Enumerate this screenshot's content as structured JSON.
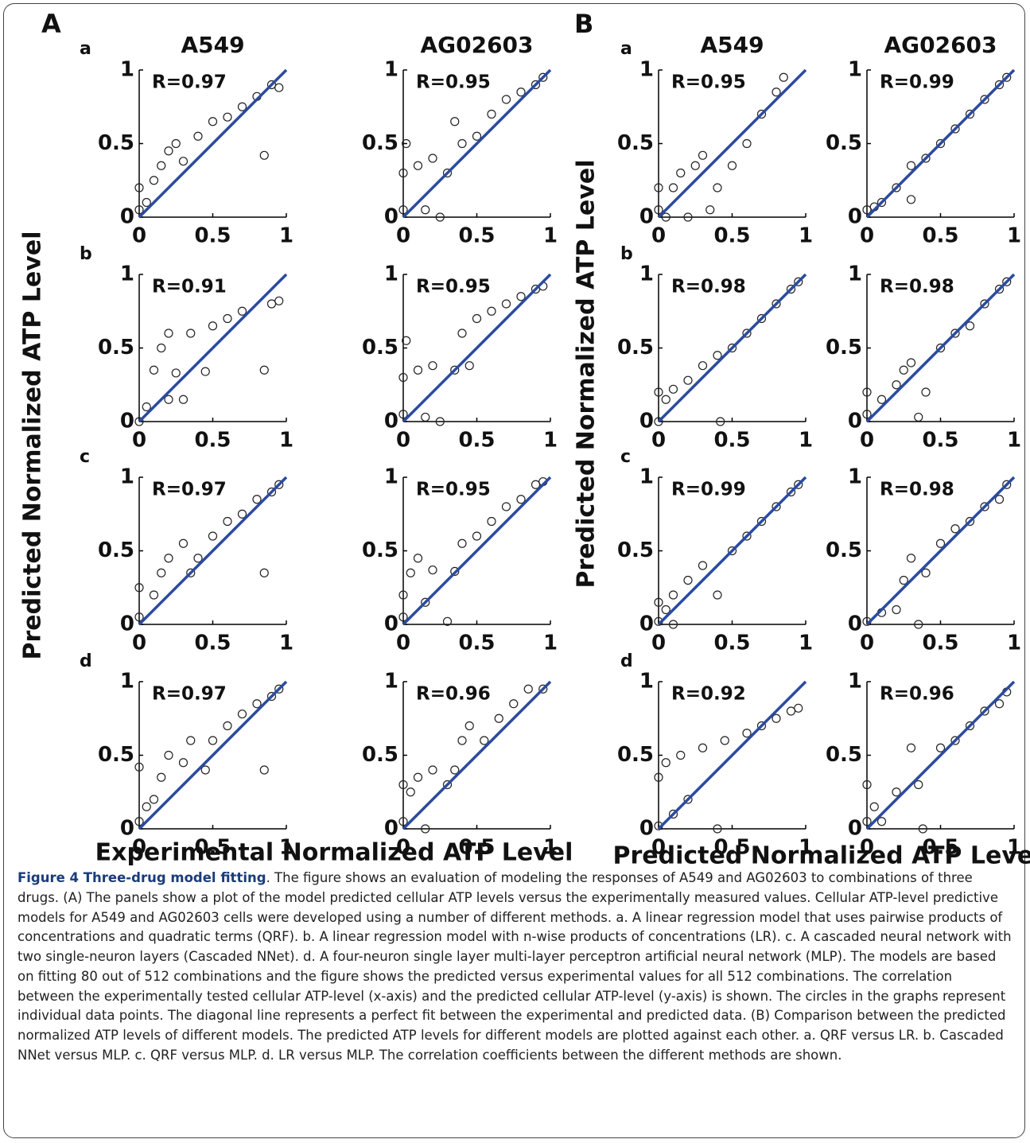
{
  "figure": {
    "group_labels": [
      "A",
      "B"
    ],
    "x_labels": [
      "Experimental Normalized ATP Level",
      "Predicted Normalized ATP Level"
    ],
    "y_labels": [
      "Predicted Normalized ATP Level",
      "Predicted Normalized ATP Level"
    ]
  },
  "caption": {
    "title": "Figure 4 Three-drug model fitting",
    "text": ". The figure shows an evaluation of modeling the responses of A549 and AG02603 to combinations of three drugs. (A) The panels show a plot of the model predicted cellular ATP levels versus the experimentally measured values. Cellular ATP-level predictive models for A549 and AG02603 cells were developed using a number of different methods. a. A linear regression model that uses pairwise products of concentrations and quadratic terms (QRF). b. A linear regression model with n-wise products of concentrations (LR). c. A cascaded neural network with two single-neuron layers (Cascaded NNet). d. A four-neuron single layer multi-layer perceptron artificial neural network (MLP). The models are based on fitting 80 out of 512 combinations and the figure shows the predicted versus experimental values for all 512 combinations. The correlation between the experimentally tested cellular ATP-level (x-axis) and the predicted cellular ATP-level (y-axis) is shown. The circles in the graphs represent individual data points. The diagonal line represents a perfect fit between the experimental and predicted data. (B) Comparison between the predicted normalized ATP levels of different models. The predicted ATP levels for different models are plotted against each other. a. QRF versus LR. b. Cascaded NNet versus MLP. c. QRF versus MLP. d. LR versus MLP. The correlation coefficients between the different methods are shown."
  },
  "chart_data": [
    {
      "type": "scatter",
      "title": "A549",
      "panel_label": "a",
      "annotation": "R=0.97",
      "x": [
        0,
        0,
        0.05,
        0.1,
        0.15,
        0.2,
        0.25,
        0.3,
        0.4,
        0.5,
        0.6,
        0.7,
        0.8,
        0.85,
        0.9,
        0.95
      ],
      "series": [
        {
          "color": "#222222",
          "values": [
            0.05,
            0.2,
            0.1,
            0.25,
            0.35,
            0.45,
            0.5,
            0.38,
            0.55,
            0.65,
            0.68,
            0.75,
            0.82,
            0.42,
            0.9,
            0.88
          ]
        }
      ],
      "xlim": [
        0,
        1
      ],
      "ylim": [
        0,
        1
      ],
      "xticks": [
        0,
        0.5,
        1
      ],
      "yticks": [
        0,
        0.5,
        1
      ],
      "diagonal_color": "#2b4ba0"
    },
    {
      "type": "scatter",
      "title": "AG02603",
      "annotation": "R=0.95",
      "x": [
        0,
        0,
        0.02,
        0.1,
        0.15,
        0.2,
        0.25,
        0.3,
        0.35,
        0.4,
        0.5,
        0.6,
        0.7,
        0.8,
        0.9,
        0.95
      ],
      "series": [
        {
          "color": "#222222",
          "values": [
            0.05,
            0.3,
            0.5,
            0.35,
            0.05,
            0.4,
            0,
            0.3,
            0.65,
            0.5,
            0.55,
            0.7,
            0.8,
            0.85,
            0.9,
            0.95
          ]
        }
      ],
      "xlim": [
        0,
        1
      ],
      "ylim": [
        0,
        1
      ],
      "xticks": [
        0,
        0.5,
        1
      ],
      "yticks": [
        0,
        0.5,
        1
      ],
      "diagonal_color": "#2b4ba0"
    },
    {
      "type": "scatter",
      "panel_label": "b",
      "annotation": "R=0.91",
      "x": [
        0,
        0.05,
        0.1,
        0.15,
        0.2,
        0.2,
        0.25,
        0.3,
        0.35,
        0.45,
        0.5,
        0.6,
        0.7,
        0.85,
        0.9,
        0.95
      ],
      "series": [
        {
          "color": "#222222",
          "values": [
            0,
            0.1,
            0.35,
            0.5,
            0.6,
            0.15,
            0.33,
            0.15,
            0.6,
            0.34,
            0.65,
            0.7,
            0.75,
            0.35,
            0.8,
            0.82
          ]
        }
      ],
      "xlim": [
        0,
        1
      ],
      "ylim": [
        0,
        1
      ],
      "xticks": [
        0,
        0.5,
        1
      ],
      "yticks": [
        0,
        0.5,
        1
      ],
      "diagonal_color": "#2b4ba0"
    },
    {
      "type": "scatter",
      "annotation": "R=0.95",
      "x": [
        0,
        0,
        0.02,
        0.1,
        0.15,
        0.2,
        0.25,
        0.35,
        0.4,
        0.45,
        0.5,
        0.6,
        0.7,
        0.8,
        0.9,
        0.95
      ],
      "series": [
        {
          "color": "#222222",
          "values": [
            0.05,
            0.3,
            0.55,
            0.35,
            0.03,
            0.38,
            0,
            0.35,
            0.6,
            0.38,
            0.7,
            0.75,
            0.8,
            0.85,
            0.9,
            0.92
          ]
        }
      ],
      "xlim": [
        0,
        1
      ],
      "ylim": [
        0,
        1
      ],
      "xticks": [
        0,
        0.5,
        1
      ],
      "yticks": [
        0,
        0.5,
        1
      ],
      "diagonal_color": "#2b4ba0"
    },
    {
      "type": "scatter",
      "panel_label": "c",
      "annotation": "R=0.97",
      "x": [
        0,
        0,
        0.1,
        0.15,
        0.2,
        0.3,
        0.35,
        0.4,
        0.5,
        0.6,
        0.7,
        0.8,
        0.85,
        0.9,
        0.95
      ],
      "series": [
        {
          "color": "#222222",
          "values": [
            0.05,
            0.25,
            0.2,
            0.35,
            0.45,
            0.55,
            0.35,
            0.45,
            0.6,
            0.7,
            0.75,
            0.85,
            0.35,
            0.9,
            0.95
          ]
        }
      ],
      "xlim": [
        0,
        1
      ],
      "ylim": [
        0,
        1
      ],
      "xticks": [
        0,
        0.5,
        1
      ],
      "yticks": [
        0,
        0.5,
        1
      ],
      "diagonal_color": "#2b4ba0"
    },
    {
      "type": "scatter",
      "annotation": "R=0.95",
      "x": [
        0,
        0,
        0.05,
        0.1,
        0.15,
        0.2,
        0.3,
        0.35,
        0.4,
        0.5,
        0.6,
        0.7,
        0.8,
        0.9,
        0.95
      ],
      "series": [
        {
          "color": "#222222",
          "values": [
            0.05,
            0.2,
            0.35,
            0.45,
            0.15,
            0.37,
            0.02,
            0.36,
            0.55,
            0.6,
            0.7,
            0.8,
            0.85,
            0.95,
            0.97
          ]
        }
      ],
      "xlim": [
        0,
        1
      ],
      "ylim": [
        0,
        1
      ],
      "xticks": [
        0,
        0.5,
        1
      ],
      "yticks": [
        0,
        0.5,
        1
      ],
      "diagonal_color": "#2b4ba0"
    },
    {
      "type": "scatter",
      "panel_label": "d",
      "annotation": "R=0.97",
      "x": [
        0,
        0,
        0.05,
        0.1,
        0.15,
        0.2,
        0.3,
        0.35,
        0.45,
        0.5,
        0.6,
        0.7,
        0.8,
        0.85,
        0.9,
        0.95
      ],
      "series": [
        {
          "color": "#222222",
          "values": [
            0.05,
            0.42,
            0.15,
            0.2,
            0.35,
            0.5,
            0.45,
            0.6,
            0.4,
            0.6,
            0.7,
            0.78,
            0.85,
            0.4,
            0.9,
            0.95
          ]
        }
      ],
      "xlim": [
        0,
        1
      ],
      "ylim": [
        0,
        1
      ],
      "xticks": [
        0,
        0.5,
        1
      ],
      "yticks": [
        0,
        0.5,
        1
      ],
      "diagonal_color": "#2b4ba0"
    },
    {
      "type": "scatter",
      "annotation": "R=0.96",
      "x": [
        0,
        0,
        0.05,
        0.1,
        0.15,
        0.2,
        0.3,
        0.35,
        0.4,
        0.45,
        0.55,
        0.65,
        0.75,
        0.85,
        0.95
      ],
      "series": [
        {
          "color": "#222222",
          "values": [
            0.05,
            0.3,
            0.25,
            0.35,
            0,
            0.4,
            0.3,
            0.4,
            0.6,
            0.7,
            0.6,
            0.75,
            0.85,
            0.95,
            0.95
          ]
        }
      ],
      "xlim": [
        0,
        1
      ],
      "ylim": [
        0,
        1
      ],
      "xticks": [
        0,
        0.5,
        1
      ],
      "yticks": [
        0,
        0.5,
        1
      ],
      "diagonal_color": "#2b4ba0"
    },
    {
      "type": "scatter",
      "title": "A549",
      "panel_label": "a",
      "annotation": "R=0.95",
      "x": [
        0,
        0,
        0.05,
        0.1,
        0.15,
        0.2,
        0.25,
        0.3,
        0.35,
        0.4,
        0.5,
        0.6,
        0.7,
        0.8,
        0.85
      ],
      "series": [
        {
          "color": "#222222",
          "values": [
            0.05,
            0.2,
            0,
            0.2,
            0.3,
            0,
            0.35,
            0.42,
            0.05,
            0.2,
            0.35,
            0.5,
            0.7,
            0.85,
            0.95
          ]
        }
      ],
      "xlim": [
        0,
        1
      ],
      "ylim": [
        0,
        1
      ],
      "xticks": [
        0,
        0.5,
        1
      ],
      "yticks": [
        0,
        0.5,
        1
      ],
      "diagonal_color": "#2b4ba0"
    },
    {
      "type": "scatter",
      "title": "AG02603",
      "annotation": "R=0.99",
      "x": [
        0,
        0.05,
        0.1,
        0.2,
        0.3,
        0.3,
        0.4,
        0.5,
        0.6,
        0.7,
        0.8,
        0.9,
        0.95
      ],
      "series": [
        {
          "color": "#222222",
          "values": [
            0.05,
            0.07,
            0.1,
            0.2,
            0.12,
            0.35,
            0.4,
            0.5,
            0.6,
            0.7,
            0.8,
            0.9,
            0.95
          ]
        }
      ],
      "xlim": [
        0,
        1
      ],
      "ylim": [
        0,
        1
      ],
      "xticks": [
        0,
        0.5,
        1
      ],
      "yticks": [
        0,
        0.5,
        1
      ],
      "diagonal_color": "#2b4ba0"
    },
    {
      "type": "scatter",
      "panel_label": "b",
      "annotation": "R=0.98",
      "x": [
        0,
        0,
        0.05,
        0.1,
        0.2,
        0.3,
        0.4,
        0.42,
        0.5,
        0.6,
        0.7,
        0.8,
        0.9,
        0.95
      ],
      "series": [
        {
          "color": "#222222",
          "values": [
            0,
            0.2,
            0.15,
            0.22,
            0.28,
            0.38,
            0.45,
            0,
            0.5,
            0.6,
            0.7,
            0.8,
            0.9,
            0.95
          ]
        }
      ],
      "xlim": [
        0,
        1
      ],
      "ylim": [
        0,
        1
      ],
      "xticks": [
        0,
        0.5,
        1
      ],
      "yticks": [
        0,
        0.5,
        1
      ],
      "diagonal_color": "#2b4ba0"
    },
    {
      "type": "scatter",
      "annotation": "R=0.98",
      "x": [
        0,
        0,
        0.1,
        0.2,
        0.25,
        0.3,
        0.35,
        0.4,
        0.5,
        0.6,
        0.7,
        0.8,
        0.9,
        0.95
      ],
      "series": [
        {
          "color": "#222222",
          "values": [
            0.05,
            0.2,
            0.15,
            0.25,
            0.35,
            0.4,
            0.03,
            0.2,
            0.5,
            0.6,
            0.65,
            0.8,
            0.9,
            0.95
          ]
        }
      ],
      "xlim": [
        0,
        1
      ],
      "ylim": [
        0,
        1
      ],
      "xticks": [
        0,
        0.5,
        1
      ],
      "yticks": [
        0,
        0.5,
        1
      ],
      "diagonal_color": "#2b4ba0"
    },
    {
      "type": "scatter",
      "panel_label": "c",
      "annotation": "R=0.99",
      "x": [
        0,
        0,
        0.05,
        0.1,
        0.1,
        0.2,
        0.3,
        0.4,
        0.5,
        0.6,
        0.7,
        0.8,
        0.9,
        0.95
      ],
      "series": [
        {
          "color": "#222222",
          "values": [
            0.02,
            0.15,
            0.1,
            0.2,
            0,
            0.3,
            0.4,
            0.2,
            0.5,
            0.6,
            0.7,
            0.8,
            0.9,
            0.95
          ]
        }
      ],
      "xlim": [
        0,
        1
      ],
      "ylim": [
        0,
        1
      ],
      "xticks": [
        0,
        0.5,
        1
      ],
      "yticks": [
        0,
        0.5,
        1
      ],
      "diagonal_color": "#2b4ba0"
    },
    {
      "type": "scatter",
      "annotation": "R=0.98",
      "x": [
        0,
        0.1,
        0.2,
        0.25,
        0.3,
        0.35,
        0.4,
        0.5,
        0.6,
        0.7,
        0.8,
        0.9,
        0.95
      ],
      "series": [
        {
          "color": "#222222",
          "values": [
            0.02,
            0.08,
            0.1,
            0.3,
            0.45,
            0,
            0.35,
            0.55,
            0.65,
            0.7,
            0.8,
            0.85,
            0.95
          ]
        }
      ],
      "xlim": [
        0,
        1
      ],
      "ylim": [
        0,
        1
      ],
      "xticks": [
        0,
        0.5,
        1
      ],
      "yticks": [
        0,
        0.5,
        1
      ],
      "diagonal_color": "#2b4ba0"
    },
    {
      "type": "scatter",
      "panel_label": "d",
      "annotation": "R=0.92",
      "x": [
        0,
        0,
        0.05,
        0.1,
        0.15,
        0.2,
        0.3,
        0.4,
        0.45,
        0.6,
        0.7,
        0.8,
        0.9,
        0.95
      ],
      "series": [
        {
          "color": "#222222",
          "values": [
            0.02,
            0.35,
            0.45,
            0.1,
            0.5,
            0.2,
            0.55,
            0,
            0.6,
            0.65,
            0.7,
            0.75,
            0.8,
            0.82
          ]
        }
      ],
      "xlim": [
        0,
        1
      ],
      "ylim": [
        0,
        1
      ],
      "xticks": [
        0,
        0.5,
        1
      ],
      "yticks": [
        0,
        0.5,
        1
      ],
      "diagonal_color": "#2b4ba0"
    },
    {
      "type": "scatter",
      "annotation": "R=0.96",
      "x": [
        0,
        0,
        0.05,
        0.1,
        0.2,
        0.3,
        0.35,
        0.38,
        0.5,
        0.6,
        0.7,
        0.8,
        0.9,
        0.95
      ],
      "series": [
        {
          "color": "#222222",
          "values": [
            0.05,
            0.3,
            0.15,
            0.05,
            0.25,
            0.55,
            0.3,
            0,
            0.55,
            0.6,
            0.7,
            0.8,
            0.85,
            0.93
          ]
        }
      ],
      "xlim": [
        0,
        1
      ],
      "ylim": [
        0,
        1
      ],
      "xticks": [
        0,
        0.5,
        1
      ],
      "yticks": [
        0,
        0.5,
        1
      ],
      "diagonal_color": "#2b4ba0"
    }
  ]
}
